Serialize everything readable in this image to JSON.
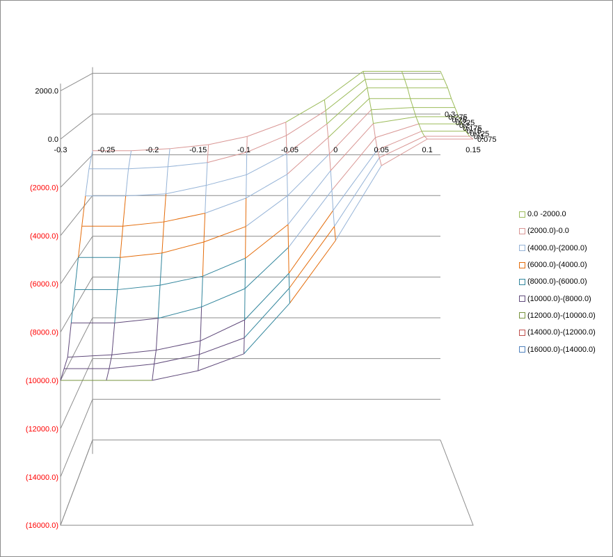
{
  "chart_data": {
    "type": "surface-3d-wireframe",
    "title": "",
    "x_axis": {
      "ticks": [
        "-0.3",
        "-0.25",
        "-0.2",
        "-0.15",
        "-0.1",
        "-0.05",
        "0",
        "0.05",
        "0.1",
        "0.15"
      ],
      "range": [
        -0.3,
        0.15
      ]
    },
    "depth_axis": {
      "ticks": [
        "0.075",
        "0.1",
        "0.125",
        "0.15",
        "0.175",
        "0.2",
        "0.225",
        "0.25",
        "0.275",
        "0.3"
      ],
      "range": [
        0.075,
        0.3
      ]
    },
    "z_axis": {
      "ticks": [
        {
          "label": "2000.0",
          "value": 2000,
          "color": "#000000"
        },
        {
          "label": "0.0",
          "value": 0,
          "color": "#000000"
        },
        {
          "label": "(2000.0)",
          "value": -2000,
          "color": "#ff0000"
        },
        {
          "label": "(4000.0)",
          "value": -4000,
          "color": "#ff0000"
        },
        {
          "label": "(6000.0)",
          "value": -6000,
          "color": "#ff0000"
        },
        {
          "label": "(8000.0)",
          "value": -8000,
          "color": "#ff0000"
        },
        {
          "label": "(10000.0)",
          "value": -10000,
          "color": "#ff0000"
        },
        {
          "label": "(12000.0)",
          "value": -12000,
          "color": "#ff0000"
        },
        {
          "label": "(14000.0)",
          "value": -14000,
          "color": "#ff0000"
        },
        {
          "label": "(16000.0)",
          "value": -16000,
          "color": "#ff0000"
        }
      ],
      "range": [
        -16000,
        2000
      ]
    },
    "legend": {
      "placement": "right",
      "items": [
        {
          "label": "0.0 -2000.0",
          "color": "#9bbb59"
        },
        {
          "label": "(2000.0)-0.0",
          "color": "#d99694"
        },
        {
          "label": "(4000.0)-(2000.0)",
          "color": "#95b3d7"
        },
        {
          "label": "(6000.0)-(4000.0)",
          "color": "#e46c0a"
        },
        {
          "label": "(8000.0)-(6000.0)",
          "color": "#31859c"
        },
        {
          "label": "(10000.0)-(8000.0)",
          "color": "#5f497a"
        },
        {
          "label": "(12000.0)-(10000.0)",
          "color": "#77933c"
        },
        {
          "label": "(14000.0)-(12000.0)",
          "color": "#c0504d"
        },
        {
          "label": "(16000.0)-(14000.0)",
          "color": "#4f81bd"
        }
      ]
    },
    "grid": true,
    "series": [
      {
        "depth": 0.075,
        "values": [
          -10000,
          -10000,
          -10000,
          -9600,
          -8900,
          -6800,
          -4200,
          -1100,
          0,
          0
        ]
      },
      {
        "depth": 0.1,
        "values": [
          -9800,
          -9800,
          -9600,
          -9200,
          -8500,
          -6400,
          -3800,
          -900,
          0,
          0
        ]
      },
      {
        "depth": 0.125,
        "values": [
          -9600,
          -9500,
          -9300,
          -8900,
          -8000,
          -6000,
          -3300,
          -700,
          100,
          100
        ]
      },
      {
        "depth": 0.15,
        "values": [
          -8400,
          -8400,
          -8200,
          -7700,
          -6900,
          -5100,
          -2600,
          -300,
          300,
          300
        ]
      },
      {
        "depth": 0.175,
        "values": [
          -7200,
          -7200,
          -7000,
          -6600,
          -5800,
          -4300,
          -1900,
          200,
          500,
          500
        ]
      },
      {
        "depth": 0.2,
        "values": [
          -6000,
          -6000,
          -5800,
          -5300,
          -4600,
          -3200,
          -1300,
          700,
          800,
          800
        ]
      },
      {
        "depth": 0.225,
        "values": [
          -4800,
          -4800,
          -4600,
          -4200,
          -3500,
          -2400,
          -700,
          1100,
          1100,
          1100
        ]
      },
      {
        "depth": 0.25,
        "values": [
          -3600,
          -3600,
          -3500,
          -3100,
          -2600,
          -1600,
          -200,
          1500,
          1500,
          1500
        ]
      },
      {
        "depth": 0.275,
        "values": [
          -2500,
          -2500,
          -2400,
          -2200,
          -1700,
          -900,
          300,
          1800,
          1800,
          1800
        ]
      },
      {
        "depth": 0.3,
        "values": [
          -1800,
          -1800,
          -1700,
          -1500,
          -1100,
          -400,
          700,
          2100,
          2100,
          2100
        ]
      }
    ]
  }
}
